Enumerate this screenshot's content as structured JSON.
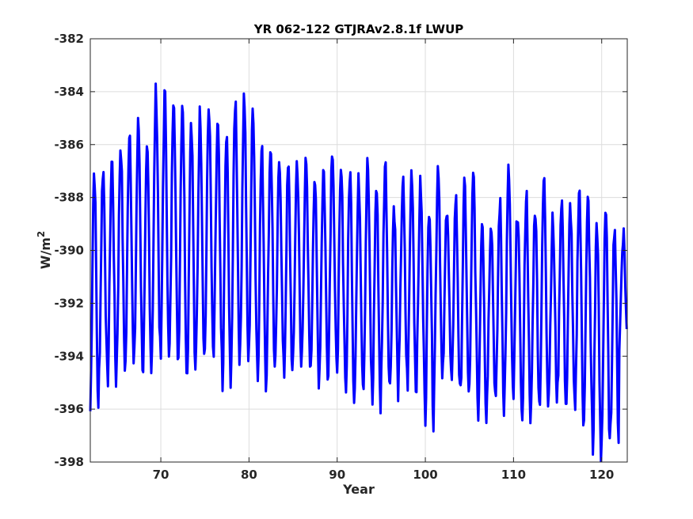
{
  "chart_data": {
    "type": "line",
    "title": "YR 062-122 GTJRAv2.8.1f LWUP",
    "xlabel": "Year",
    "ylabel_main": "W/m",
    "ylabel_sup": "2",
    "xlim": [
      62,
      122.9
    ],
    "ylim": [
      -398,
      -382
    ],
    "xticks": [
      70,
      80,
      90,
      100,
      110,
      120
    ],
    "yticks": [
      -382,
      -384,
      -386,
      -388,
      -390,
      -392,
      -394,
      -396,
      -398
    ],
    "grid": true,
    "line_color": "#0000ff",
    "series": [
      {
        "cycle_start_year": 62,
        "annual_max": [
          -387.0,
          -386.9,
          -386.6,
          -386.0,
          -385.4,
          -385.2,
          -386.3,
          -384.0,
          -384.1,
          -384.0,
          -384.3,
          -385.0,
          -384.8,
          -384.5,
          -385.3,
          -385.7,
          -384.3,
          -384.1,
          -384.6,
          -386.2,
          -386.0,
          -386.5,
          -386.9,
          -386.6,
          -386.8,
          -387.2,
          -386.9,
          -386.0,
          -387.1,
          -387.0,
          -387.4,
          -386.7,
          -387.6,
          -386.7,
          -388.3,
          -387.4,
          -387.0,
          -387.5,
          -388.2,
          -386.7,
          -388.2,
          -388.0,
          -387.6,
          -387.2,
          -388.7,
          -388.8,
          -388.2,
          -387.0,
          -388.4,
          -387.8,
          -388.3,
          -387.3,
          -388.9,
          -388.0,
          -388.3,
          -387.6,
          -388.1,
          -388.9,
          -388.4,
          -389.0,
          -389.3
        ],
        "annual_min": [
          -396.3,
          -394.8,
          -395.0,
          -394.4,
          -394.5,
          -394.3,
          -394.6,
          -393.8,
          -394.3,
          -393.9,
          -394.3,
          -395.0,
          -394.1,
          -393.9,
          -394.2,
          -395.5,
          -394.0,
          -394.2,
          -394.1,
          -395.0,
          -394.6,
          -394.5,
          -394.8,
          -394.5,
          -394.1,
          -394.9,
          -394.6,
          -394.5,
          -394.5,
          -395.7,
          -395.0,
          -395.1,
          -396.0,
          -395.0,
          -395.4,
          -394.8,
          -395.2,
          -395.1,
          -396.5,
          -395.1,
          -394.8,
          -395.5,
          -395.7,
          -395.3,
          -396.6,
          -395.5,
          -396.0,
          -395.4,
          -395.7,
          -396.9,
          -395.9,
          -395.7,
          -395.5,
          -395.6,
          -396.0,
          -396.4,
          -396.3,
          -398.0,
          -397.5,
          -397.2,
          -393.7
        ]
      }
    ]
  }
}
